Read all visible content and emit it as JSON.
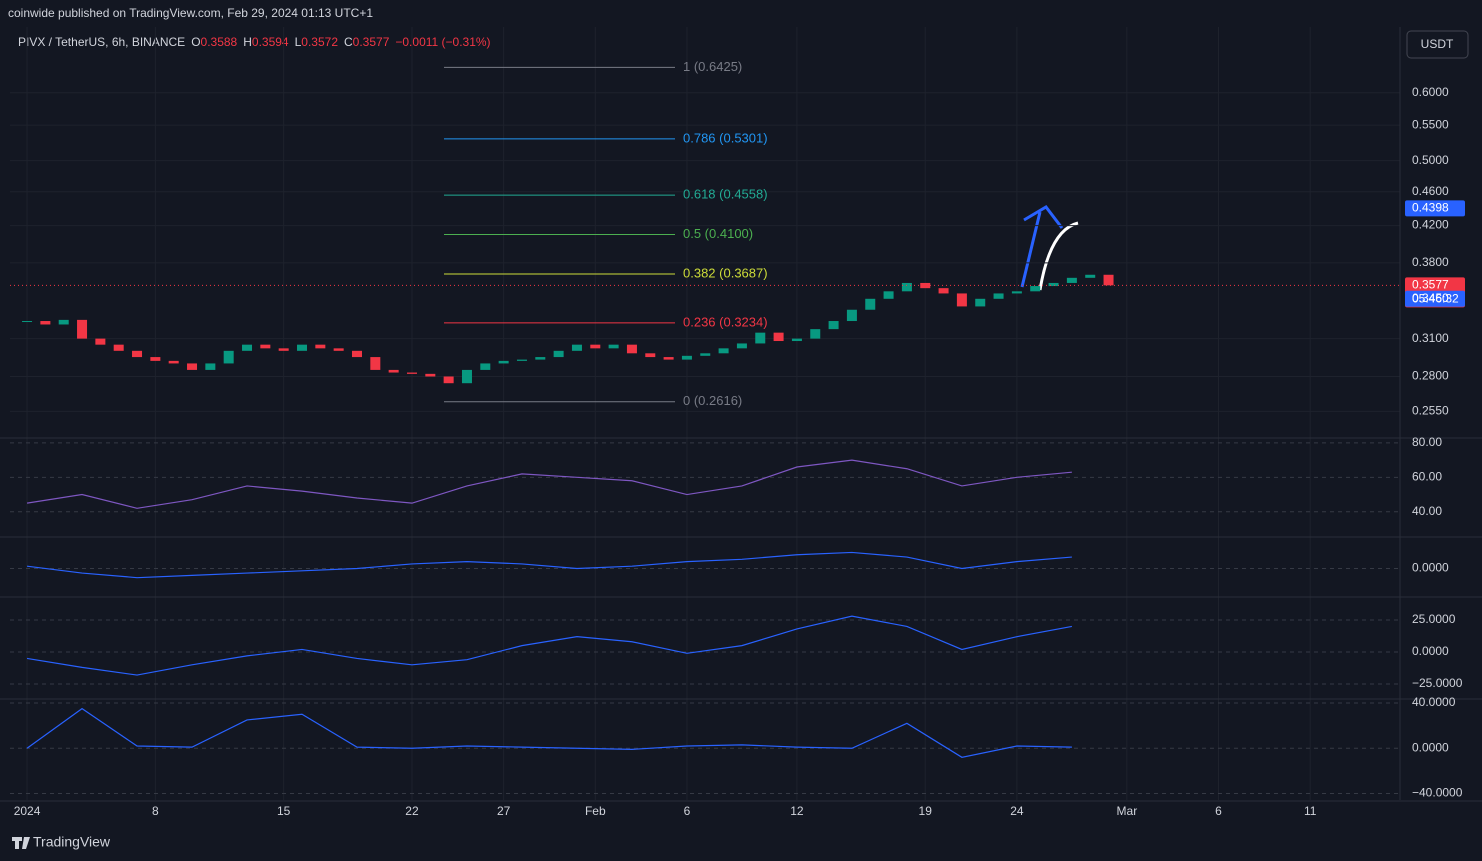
{
  "header": {
    "publisher": "coinwide published on TradingView.com, Feb 29, 2024 01:13 UTC+1",
    "symbol": "PIVX / TetherUS, 6h, BINANCE",
    "open": "0.3588",
    "high": "0.3594",
    "low": "0.3572",
    "close": "0.3577",
    "change": "−0.0011 (−0.31%)",
    "currency": "USDT",
    "footer": "TradingView"
  },
  "chart_data": [
    {
      "type": "candlestick",
      "log_scale": true,
      "grid": true,
      "up_color": "#089981",
      "down_color": "#f23645",
      "x": [
        0,
        1,
        2,
        3,
        4,
        5,
        6,
        7,
        8,
        9,
        10,
        11,
        12,
        13,
        14,
        15,
        16,
        17,
        18,
        19,
        20,
        21,
        22,
        23,
        24,
        25,
        26,
        27,
        28,
        29,
        30,
        31,
        32,
        33,
        34,
        35,
        36,
        37,
        38,
        39,
        40,
        41,
        42,
        43,
        44,
        45,
        46,
        47,
        48,
        49,
        50,
        51,
        52,
        53,
        54,
        55,
        56,
        57,
        58,
        59
      ],
      "xlim": [
        -0.93,
        74.9
      ],
      "xticks": [
        {
          "value": 0,
          "label": "2024"
        },
        {
          "value": 7,
          "label": "8"
        },
        {
          "value": 14,
          "label": "15"
        },
        {
          "value": 21,
          "label": "22"
        },
        {
          "value": 26,
          "label": "27"
        },
        {
          "value": 31,
          "label": "Feb"
        },
        {
          "value": 36,
          "label": "6"
        },
        {
          "value": 42,
          "label": "12"
        },
        {
          "value": 49,
          "label": "19"
        },
        {
          "value": 54,
          "label": "24"
        },
        {
          "value": 60,
          "label": "Mar"
        },
        {
          "value": 65,
          "label": "6"
        },
        {
          "value": 70,
          "label": "11"
        }
      ],
      "values": [
        0.325,
        0.322,
        0.326,
        0.31,
        0.305,
        0.3,
        0.295,
        0.292,
        0.29,
        0.285,
        0.29,
        0.3,
        0.305,
        0.302,
        0.3,
        0.305,
        0.302,
        0.3,
        0.295,
        0.285,
        0.283,
        0.282,
        0.28,
        0.275,
        0.285,
        0.29,
        0.292,
        0.293,
        0.295,
        0.3,
        0.305,
        0.302,
        0.305,
        0.298,
        0.295,
        0.293,
        0.296,
        0.298,
        0.302,
        0.306,
        0.315,
        0.308,
        0.31,
        0.318,
        0.325,
        0.335,
        0.345,
        0.352,
        0.36,
        0.355,
        0.35,
        0.338,
        0.345,
        0.35,
        0.352,
        0.357,
        0.36,
        0.365,
        0.368,
        0.3577
      ],
      "ylim": [
        0.238,
        0.716
      ],
      "yticks": [
        {
          "value": 0.6,
          "label": "0.6000"
        },
        {
          "value": 0.55,
          "label": "0.5500"
        },
        {
          "value": 0.5,
          "label": "0.5000"
        },
        {
          "value": 0.46,
          "label": "0.4600"
        },
        {
          "value": 0.42,
          "label": "0.4200"
        },
        {
          "value": 0.38,
          "label": "0.3800"
        },
        {
          "value": 0.31,
          "label": "0.3100"
        },
        {
          "value": 0.28,
          "label": "0.2800"
        },
        {
          "value": 0.255,
          "label": "0.2550"
        }
      ],
      "fib_levels": [
        {
          "label": "1 (0.6425)",
          "price": 0.6425,
          "color": "#787b86"
        },
        {
          "label": "0.786 (0.5301)",
          "price": 0.5301,
          "color": "#2196f3"
        },
        {
          "label": "0.618 (0.4558)",
          "price": 0.4558,
          "color": "#22ab94"
        },
        {
          "label": "0.5 (0.4100)",
          "price": 0.41,
          "color": "#4caf50"
        },
        {
          "label": "0.382 (0.3687)",
          "price": 0.3687,
          "color": "#cddc39"
        },
        {
          "label": "0.236 (0.3234)",
          "price": 0.3234,
          "color": "#f23645"
        },
        {
          "label": "0 (0.2616)",
          "price": 0.2616,
          "color": "#787b86"
        }
      ],
      "price_tags": [
        {
          "label": "0.4398",
          "value": 0.4398,
          "color": "#2962ff"
        },
        {
          "label": "0.3577",
          "value": 0.3577,
          "color": "#f23645"
        },
        {
          "label": "0.3450",
          "value": 0.345,
          "color": "#2962ff"
        }
      ],
      "countdown": "05:46:32"
    },
    {
      "type": "line",
      "x": [
        0,
        3,
        6,
        9,
        12,
        15,
        18,
        21,
        24,
        27,
        30,
        33,
        36,
        39,
        42,
        45,
        48,
        51,
        54,
        57
      ],
      "ylim": [
        25.9,
        81.7
      ],
      "grid": true,
      "yticks": [
        {
          "value": 80,
          "label": "80.00"
        },
        {
          "value": 60,
          "label": "60.00"
        },
        {
          "value": 40,
          "label": "40.00"
        }
      ],
      "series": [
        {
          "color": "#7e57c2",
          "values": [
            45,
            50,
            42,
            47,
            55,
            52,
            48,
            45,
            55,
            62,
            60,
            58,
            50,
            55,
            66,
            70,
            65,
            55,
            60,
            63
          ]
        }
      ]
    },
    {
      "type": "line",
      "x": [
        0,
        3,
        6,
        9,
        12,
        15,
        18,
        21,
        24,
        27,
        30,
        33,
        36,
        39,
        42,
        45,
        48,
        51,
        54,
        57
      ],
      "ylim": [
        -0.012,
        0.012
      ],
      "grid": true,
      "yticks": [
        {
          "value": 0,
          "label": "0.0000"
        }
      ],
      "series": [
        {
          "color": "#2962ff",
          "values": [
            0.001,
            -0.002,
            -0.004,
            -0.003,
            -0.002,
            -0.001,
            0.0,
            0.002,
            0.003,
            0.002,
            0.0,
            0.001,
            0.003,
            0.004,
            0.006,
            0.007,
            0.005,
            0.0,
            0.003,
            0.005
          ]
        }
      ]
    },
    {
      "type": "line",
      "x": [
        0,
        3,
        6,
        9,
        12,
        15,
        18,
        21,
        24,
        27,
        30,
        33,
        36,
        39,
        42,
        45,
        48,
        51,
        54,
        57
      ],
      "ylim": [
        -35.9,
        41.4
      ],
      "grid": true,
      "yticks": [
        {
          "value": 25,
          "label": "25.0000"
        },
        {
          "value": 0,
          "label": "0.0000"
        },
        {
          "value": -25,
          "label": "−25.0000"
        }
      ],
      "series": [
        {
          "color": "#2962ff",
          "values": [
            -5,
            -12,
            -18,
            -10,
            -3,
            2,
            -5,
            -10,
            -6,
            5,
            12,
            8,
            -1,
            5,
            18,
            28,
            20,
            2,
            12,
            20
          ]
        }
      ]
    },
    {
      "type": "line",
      "x": [
        0,
        3,
        6,
        9,
        12,
        15,
        18,
        21,
        24,
        27,
        30,
        33,
        36,
        39,
        42,
        45,
        48,
        51,
        54,
        57
      ],
      "ylim": [
        -45.7,
        42.6
      ],
      "grid": true,
      "yticks": [
        {
          "value": 40,
          "label": "40.0000"
        },
        {
          "value": 0,
          "label": "0.0000"
        },
        {
          "value": -40,
          "label": "−40.0000"
        }
      ],
      "series": [
        {
          "color": "#2962ff",
          "values": [
            0,
            35,
            2,
            1,
            25,
            30,
            1,
            0,
            2,
            1,
            0,
            -1,
            2,
            3,
            1,
            0,
            22,
            -8,
            2,
            1
          ]
        }
      ]
    }
  ]
}
